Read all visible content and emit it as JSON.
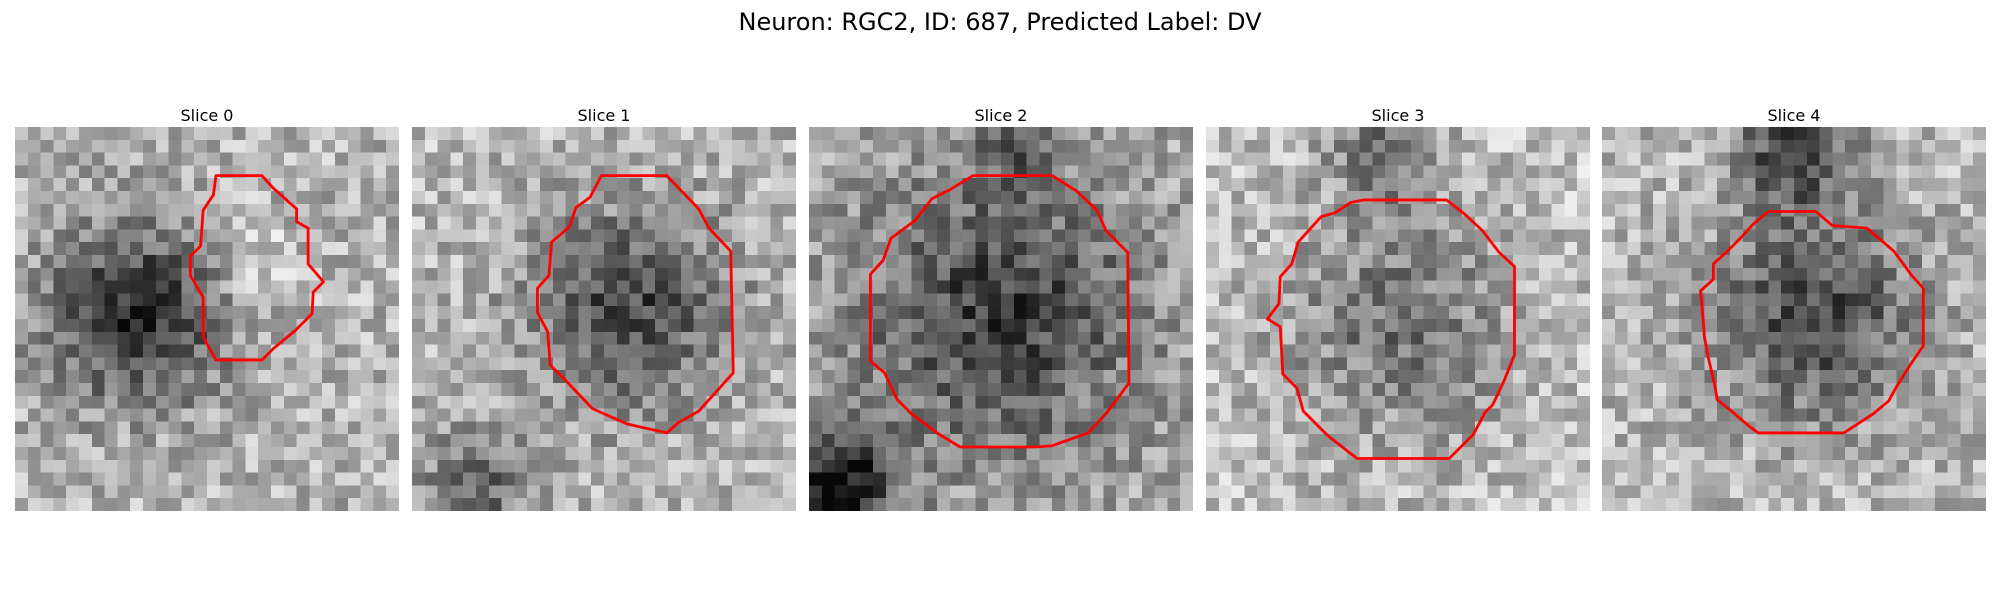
{
  "figure": {
    "title": "Neuron: RGC2, ID: 687, Predicted Label: DV",
    "outline_color": "#ff0000",
    "colormap": "grayscale"
  },
  "slices": [
    {
      "title": "Slice 0"
    },
    {
      "title": "Slice 1"
    },
    {
      "title": "Slice 2"
    },
    {
      "title": "Slice 3"
    },
    {
      "title": "Slice 4"
    }
  ]
}
